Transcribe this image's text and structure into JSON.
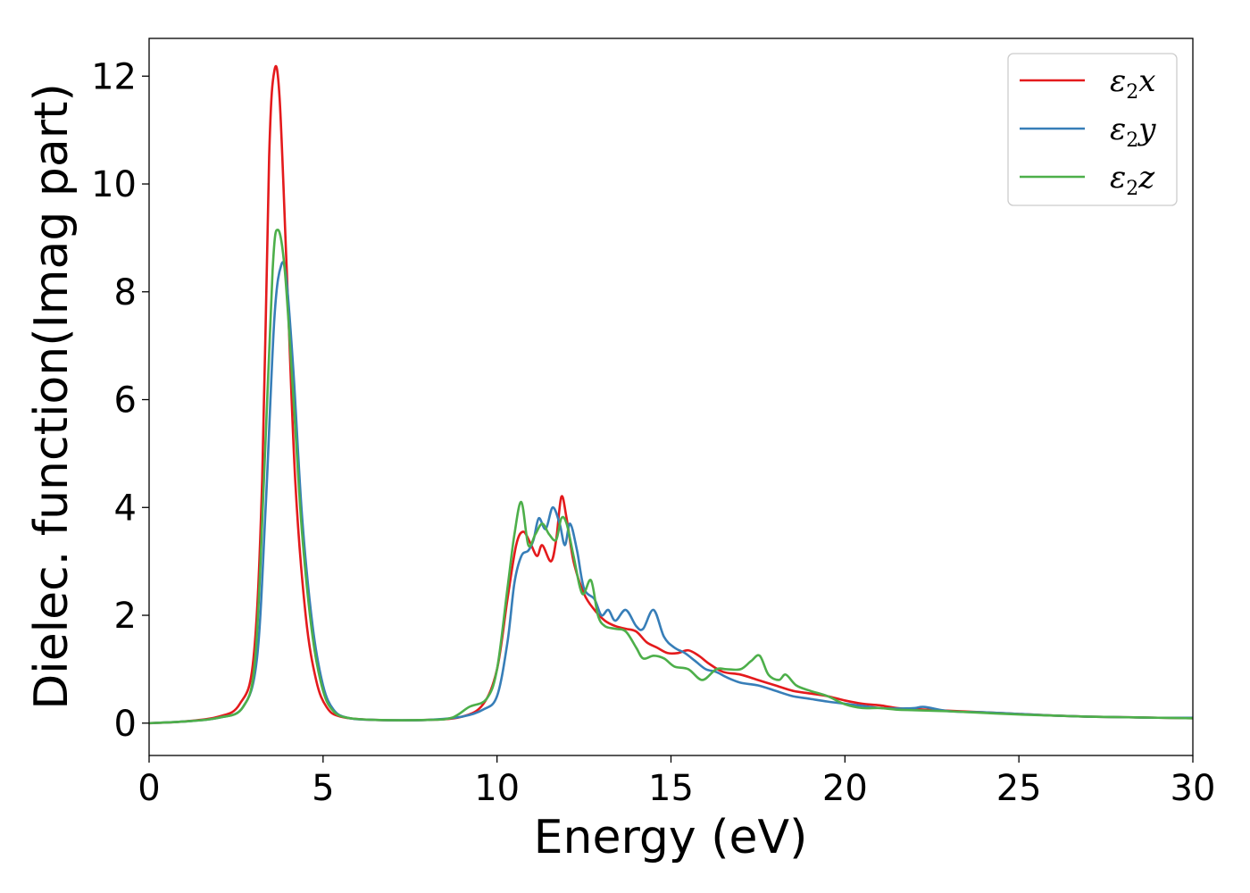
{
  "chart_data": {
    "type": "line",
    "xlabel": "Energy (eV)",
    "ylabel": "Dielec. function(Imag part)",
    "xlim": [
      0,
      30
    ],
    "ylim": [
      -0.6,
      12.7
    ],
    "xticks": [
      0,
      5,
      10,
      15,
      20,
      25,
      30
    ],
    "yticks": [
      0,
      2,
      4,
      6,
      8,
      10,
      12
    ],
    "grid": false,
    "legend_position": "top-right",
    "series": [
      {
        "name_base": "ε",
        "name_sub": "2",
        "name_suffix": "x",
        "color": "#e41a1c",
        "points": [
          [
            0,
            0.0
          ],
          [
            1,
            0.03
          ],
          [
            2,
            0.12
          ],
          [
            2.6,
            0.35
          ],
          [
            3.0,
            1.2
          ],
          [
            3.25,
            4.5
          ],
          [
            3.45,
            10.5
          ],
          [
            3.6,
            12.1
          ],
          [
            3.75,
            11.6
          ],
          [
            3.95,
            8.5
          ],
          [
            4.2,
            4.5
          ],
          [
            4.5,
            2.0
          ],
          [
            4.8,
            0.8
          ],
          [
            5.1,
            0.3
          ],
          [
            5.5,
            0.12
          ],
          [
            6.5,
            0.06
          ],
          [
            8.0,
            0.06
          ],
          [
            9.0,
            0.12
          ],
          [
            9.6,
            0.35
          ],
          [
            10.0,
            1.0
          ],
          [
            10.3,
            2.3
          ],
          [
            10.55,
            3.3
          ],
          [
            10.75,
            3.55
          ],
          [
            10.95,
            3.35
          ],
          [
            11.15,
            3.1
          ],
          [
            11.3,
            3.3
          ],
          [
            11.55,
            3.0
          ],
          [
            11.7,
            3.4
          ],
          [
            11.85,
            4.2
          ],
          [
            12.0,
            3.8
          ],
          [
            12.2,
            3.0
          ],
          [
            12.5,
            2.4
          ],
          [
            12.8,
            2.1
          ],
          [
            13.1,
            1.9
          ],
          [
            13.4,
            1.8
          ],
          [
            13.7,
            1.75
          ],
          [
            14.0,
            1.7
          ],
          [
            14.3,
            1.5
          ],
          [
            14.6,
            1.4
          ],
          [
            14.9,
            1.3
          ],
          [
            15.2,
            1.3
          ],
          [
            15.5,
            1.35
          ],
          [
            15.8,
            1.25
          ],
          [
            16.1,
            1.1
          ],
          [
            16.5,
            0.95
          ],
          [
            17.0,
            0.9
          ],
          [
            17.5,
            0.8
          ],
          [
            18.0,
            0.7
          ],
          [
            18.5,
            0.6
          ],
          [
            19.0,
            0.55
          ],
          [
            19.5,
            0.5
          ],
          [
            20.0,
            0.42
          ],
          [
            20.5,
            0.36
          ],
          [
            21.0,
            0.33
          ],
          [
            21.5,
            0.28
          ],
          [
            22.0,
            0.26
          ],
          [
            23.0,
            0.23
          ],
          [
            24.0,
            0.2
          ],
          [
            25.0,
            0.17
          ],
          [
            26.0,
            0.14
          ],
          [
            27.0,
            0.12
          ],
          [
            28.0,
            0.11
          ],
          [
            29.0,
            0.1
          ],
          [
            30.0,
            0.09
          ]
        ]
      },
      {
        "name_base": "ε",
        "name_sub": "2",
        "name_suffix": "y",
        "color": "#377eb8",
        "points": [
          [
            0,
            0.0
          ],
          [
            1,
            0.03
          ],
          [
            2,
            0.1
          ],
          [
            2.7,
            0.3
          ],
          [
            3.1,
            1.2
          ],
          [
            3.35,
            4.0
          ],
          [
            3.6,
            7.5
          ],
          [
            3.8,
            8.5
          ],
          [
            3.95,
            8.2
          ],
          [
            4.15,
            6.5
          ],
          [
            4.4,
            3.8
          ],
          [
            4.7,
            1.8
          ],
          [
            5.0,
            0.7
          ],
          [
            5.3,
            0.25
          ],
          [
            5.7,
            0.1
          ],
          [
            6.5,
            0.06
          ],
          [
            8.0,
            0.06
          ],
          [
            9.0,
            0.12
          ],
          [
            9.6,
            0.25
          ],
          [
            10.0,
            0.5
          ],
          [
            10.3,
            1.5
          ],
          [
            10.5,
            2.6
          ],
          [
            10.7,
            3.1
          ],
          [
            10.9,
            3.2
          ],
          [
            11.05,
            3.4
          ],
          [
            11.2,
            3.8
          ],
          [
            11.4,
            3.6
          ],
          [
            11.6,
            4.0
          ],
          [
            11.8,
            3.7
          ],
          [
            11.95,
            3.3
          ],
          [
            12.1,
            3.7
          ],
          [
            12.3,
            3.2
          ],
          [
            12.5,
            2.5
          ],
          [
            12.8,
            2.3
          ],
          [
            13.0,
            2.0
          ],
          [
            13.2,
            2.1
          ],
          [
            13.4,
            1.9
          ],
          [
            13.7,
            2.1
          ],
          [
            14.0,
            1.8
          ],
          [
            14.2,
            1.75
          ],
          [
            14.5,
            2.1
          ],
          [
            14.8,
            1.6
          ],
          [
            15.1,
            1.4
          ],
          [
            15.4,
            1.3
          ],
          [
            15.7,
            1.15
          ],
          [
            16.0,
            1.0
          ],
          [
            16.3,
            0.95
          ],
          [
            16.6,
            0.85
          ],
          [
            17.0,
            0.75
          ],
          [
            17.5,
            0.7
          ],
          [
            18.0,
            0.6
          ],
          [
            18.5,
            0.5
          ],
          [
            19.0,
            0.45
          ],
          [
            19.5,
            0.4
          ],
          [
            20.0,
            0.36
          ],
          [
            20.5,
            0.32
          ],
          [
            21.0,
            0.28
          ],
          [
            21.5,
            0.27
          ],
          [
            22.0,
            0.28
          ],
          [
            22.3,
            0.3
          ],
          [
            23.0,
            0.22
          ],
          [
            24.0,
            0.2
          ],
          [
            25.0,
            0.17
          ],
          [
            26.0,
            0.14
          ],
          [
            27.0,
            0.12
          ],
          [
            28.0,
            0.11
          ],
          [
            29.0,
            0.1
          ],
          [
            30.0,
            0.1
          ]
        ]
      },
      {
        "name_base": "ε",
        "name_sub": "2",
        "name_suffix": "z",
        "color": "#4daf4a",
        "points": [
          [
            0,
            0.0
          ],
          [
            1,
            0.03
          ],
          [
            2,
            0.1
          ],
          [
            2.7,
            0.3
          ],
          [
            3.05,
            1.2
          ],
          [
            3.3,
            4.5
          ],
          [
            3.55,
            8.4
          ],
          [
            3.7,
            9.15
          ],
          [
            3.9,
            8.4
          ],
          [
            4.15,
            6.0
          ],
          [
            4.4,
            3.5
          ],
          [
            4.7,
            1.6
          ],
          [
            5.0,
            0.6
          ],
          [
            5.3,
            0.22
          ],
          [
            5.7,
            0.1
          ],
          [
            6.5,
            0.06
          ],
          [
            8.0,
            0.06
          ],
          [
            8.7,
            0.1
          ],
          [
            9.2,
            0.3
          ],
          [
            9.7,
            0.45
          ],
          [
            10.0,
            1.0
          ],
          [
            10.3,
            2.5
          ],
          [
            10.5,
            3.5
          ],
          [
            10.7,
            4.1
          ],
          [
            10.9,
            3.3
          ],
          [
            11.1,
            3.5
          ],
          [
            11.3,
            3.7
          ],
          [
            11.5,
            3.5
          ],
          [
            11.7,
            3.4
          ],
          [
            11.85,
            3.8
          ],
          [
            12.0,
            3.7
          ],
          [
            12.2,
            3.1
          ],
          [
            12.45,
            2.4
          ],
          [
            12.7,
            2.65
          ],
          [
            12.9,
            2.0
          ],
          [
            13.1,
            1.8
          ],
          [
            13.4,
            1.75
          ],
          [
            13.7,
            1.7
          ],
          [
            14.0,
            1.4
          ],
          [
            14.2,
            1.2
          ],
          [
            14.5,
            1.25
          ],
          [
            14.8,
            1.2
          ],
          [
            15.1,
            1.05
          ],
          [
            15.5,
            1.0
          ],
          [
            15.9,
            0.8
          ],
          [
            16.3,
            1.0
          ],
          [
            16.6,
            1.0
          ],
          [
            17.0,
            1.0
          ],
          [
            17.3,
            1.15
          ],
          [
            17.55,
            1.25
          ],
          [
            17.8,
            0.9
          ],
          [
            18.1,
            0.8
          ],
          [
            18.3,
            0.9
          ],
          [
            18.6,
            0.7
          ],
          [
            19.0,
            0.6
          ],
          [
            19.5,
            0.5
          ],
          [
            20.0,
            0.35
          ],
          [
            20.5,
            0.28
          ],
          [
            21.0,
            0.28
          ],
          [
            21.5,
            0.25
          ],
          [
            22.0,
            0.24
          ],
          [
            23.0,
            0.22
          ],
          [
            24.0,
            0.19
          ],
          [
            25.0,
            0.16
          ],
          [
            26.0,
            0.14
          ],
          [
            27.0,
            0.12
          ],
          [
            28.0,
            0.11
          ],
          [
            29.0,
            0.1
          ],
          [
            30.0,
            0.09
          ]
        ]
      }
    ]
  }
}
